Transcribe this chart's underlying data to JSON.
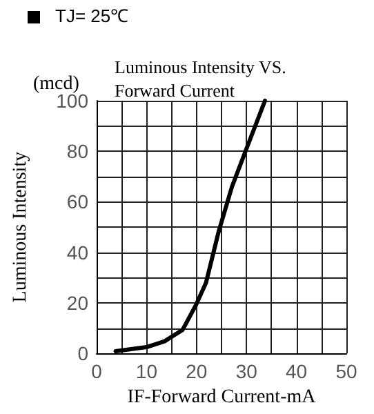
{
  "chart_data": {
    "type": "line",
    "title": "Luminous Intensity VS.\nForward Current",
    "xlabel": "IF-Forward Current-mA",
    "ylabel": "Luminous Intensity",
    "annotations": [
      "TJ= 25℃",
      "(mcd)"
    ],
    "x": [
      3.8,
      10,
      13.6,
      17.2,
      19.9,
      21.9,
      24.4,
      27.1,
      29.8,
      33.7
    ],
    "series": [
      {
        "color": "#000000",
        "values": [
          0.9,
          2.5,
          4.8,
          9.3,
          19.2,
          28,
          48,
          66,
          80,
          100
        ]
      }
    ],
    "xlim": [
      0,
      50
    ],
    "ylim": [
      0,
      100
    ],
    "xticks": [
      0,
      {
        "value": 5,
        "label": null
      },
      10,
      {
        "value": 15,
        "label": null
      },
      20,
      {
        "value": 25,
        "label": null
      },
      30,
      {
        "value": 35,
        "label": null
      },
      40,
      {
        "value": 45,
        "label": null
      },
      50
    ],
    "yticks": [
      0,
      {
        "value": 10,
        "label": null
      },
      20,
      {
        "value": 30,
        "label": null
      },
      40,
      {
        "value": 50,
        "label": null
      },
      60,
      {
        "value": 70,
        "label": null
      },
      80,
      {
        "value": 90,
        "label": null
      },
      100
    ],
    "grid": true,
    "marker": "none",
    "line_style": "solid"
  }
}
